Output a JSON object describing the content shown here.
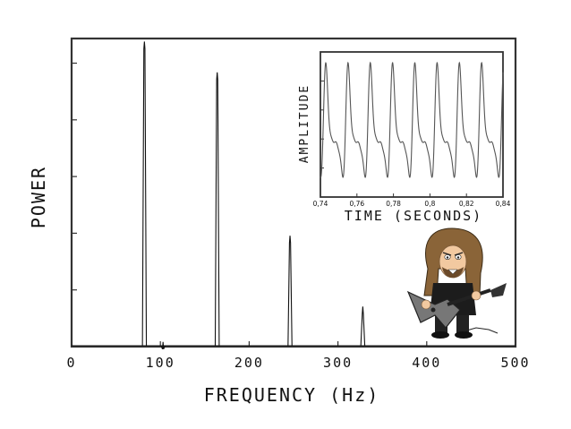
{
  "chart_data": [
    {
      "type": "line",
      "xlabel": "FREQUENCY (Hz)",
      "ylabel": "POWER",
      "xlim": [
        0,
        500
      ],
      "ylim": [
        0,
        1
      ],
      "xticks": [
        0,
        100,
        200,
        300,
        400,
        500
      ],
      "x_tick_labels": [
        "0",
        "100",
        "200",
        "300",
        "400",
        "500"
      ],
      "grid": false,
      "peaks": [
        {
          "x": 82,
          "y": 0.99
        },
        {
          "x": 103,
          "y": 0.015
        },
        {
          "x": 164,
          "y": 0.89
        },
        {
          "x": 246,
          "y": 0.36
        },
        {
          "x": 328,
          "y": 0.13
        }
      ]
    },
    {
      "type": "line",
      "xlabel": "TIME (SECONDS)",
      "ylabel": "AMPLITUDE",
      "xlim": [
        0.74,
        0.84
      ],
      "xticks": [
        0.74,
        0.76,
        0.78,
        0.8,
        0.82,
        0.84
      ],
      "x_tick_labels": [
        "0,74",
        "0,76",
        "0,78",
        "0,8",
        "0,82",
        "0,84"
      ],
      "grid": false,
      "waveform": {
        "fundamental_hz": 82,
        "harmonics": [
          {
            "multiple": 1,
            "amplitude": 1.0
          },
          {
            "multiple": 2,
            "amplitude": 0.8
          },
          {
            "multiple": 3,
            "amplitude": 0.35
          },
          {
            "multiple": 4,
            "amplitude": 0.12
          }
        ]
      }
    }
  ],
  "colors": {
    "line": "#111111",
    "wave": "#555555",
    "axis": "#333333"
  },
  "icons": {
    "mascot": "guitarist-icon"
  }
}
